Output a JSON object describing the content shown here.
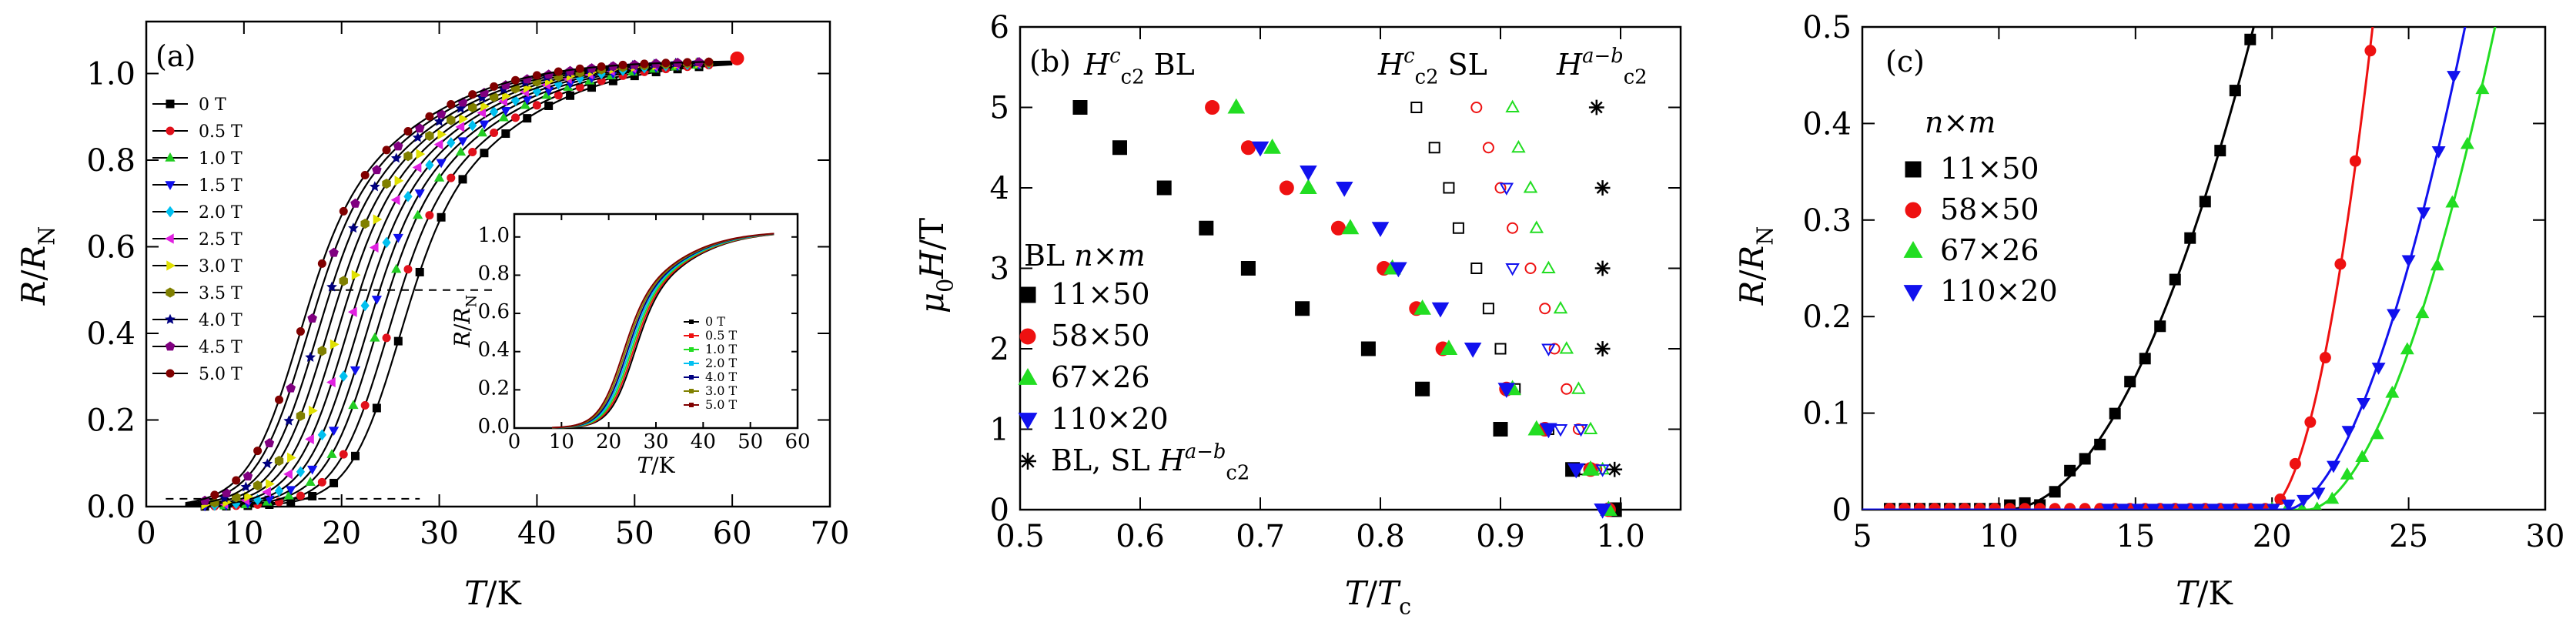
{
  "chart_data": [
    {
      "type": "line",
      "panel_label": "(a)",
      "xlabel": "T/K",
      "ylabel": "R/R_N",
      "xlim": [
        0,
        70
      ],
      "ylim": [
        0,
        1.12
      ],
      "x_ticks": [
        0,
        10,
        20,
        30,
        40,
        50,
        60,
        70
      ],
      "y_ticks": [
        0,
        0.2,
        0.4,
        0.6,
        0.8,
        1.0
      ],
      "series": [
        {
          "name": "0 T",
          "color": "#000000",
          "marker": "square",
          "tc": 25.5
        },
        {
          "name": "0.5 T",
          "color": "#e0101b",
          "marker": "circle",
          "tc": 24.2
        },
        {
          "name": "1.0 T",
          "color": "#22cc22",
          "marker": "triangle-up",
          "tc": 23.0
        },
        {
          "name": "1.5 T",
          "color": "#1010ee",
          "marker": "triangle-down",
          "tc": 22.0
        },
        {
          "name": "2.0 T",
          "color": "#00c0f0",
          "marker": "diamond",
          "tc": 21.0
        },
        {
          "name": "2.5 T",
          "color": "#e020e0",
          "marker": "triangle-left",
          "tc": 20.0
        },
        {
          "name": "3.0 T",
          "color": "#e0e000",
          "marker": "triangle-right",
          "tc": 19.0
        },
        {
          "name": "3.5 T",
          "color": "#808000",
          "marker": "hexagon",
          "tc": 18.0
        },
        {
          "name": "4.0 T",
          "color": "#000080",
          "marker": "star",
          "tc": 17.0
        },
        {
          "name": "4.5 T",
          "color": "#800080",
          "marker": "pentagon",
          "tc": 16.0
        },
        {
          "name": "5.0 T",
          "color": "#800000",
          "marker": "circle",
          "tc": 15.2
        }
      ],
      "inset": {
        "xlabel": "T/K",
        "ylabel": "R/R_N",
        "xlim": [
          0,
          60
        ],
        "ylim": [
          0,
          1.12
        ],
        "x_ticks": [
          0,
          10,
          20,
          30,
          40,
          50,
          60
        ],
        "y_ticks": [
          0,
          0.2,
          0.4,
          0.6,
          0.8,
          1.0
        ],
        "legend": [
          "0 T",
          "0.5 T",
          "1.0 T",
          "2.0 T",
          "4.0 T",
          "3.0 T",
          "5.0 T"
        ]
      }
    },
    {
      "type": "scatter",
      "panel_label": "(b)",
      "xlabel": "T/T_c",
      "ylabel": "μ0H/T",
      "xlim": [
        0.5,
        1.05
      ],
      "ylim": [
        0,
        6
      ],
      "x_ticks": [
        0.5,
        0.6,
        0.7,
        0.8,
        0.9,
        1.0
      ],
      "y_ticks": [
        0,
        1,
        2,
        3,
        4,
        5,
        6
      ],
      "annotations": {
        "hc2_bl": "H^c_c2 BL",
        "hc2_sl": "H^c_c2 SL",
        "hab": "H^{a-b}_c2"
      },
      "legend_title": "BL n×m",
      "series": [
        {
          "name": "11×50",
          "color": "#000000",
          "marker": "square",
          "bl": [
            [
              0.55,
              5
            ],
            [
              0.583,
              4.5
            ],
            [
              0.62,
              4
            ],
            [
              0.655,
              3.5
            ],
            [
              0.69,
              3
            ],
            [
              0.735,
              2.5
            ],
            [
              0.79,
              2
            ],
            [
              0.835,
              1.5
            ],
            [
              0.9,
              1
            ],
            [
              0.96,
              0.5
            ],
            [
              0.995,
              0
            ]
          ],
          "sl": [
            [
              0.83,
              5
            ],
            [
              0.845,
              4.5
            ],
            [
              0.857,
              4
            ],
            [
              0.865,
              3.5
            ],
            [
              0.88,
              3
            ],
            [
              0.89,
              2.5
            ],
            [
              0.9,
              2
            ],
            [
              0.912,
              1.5
            ],
            [
              0.94,
              1
            ],
            [
              0.97,
              0.5
            ]
          ]
        },
        {
          "name": "58×50",
          "color": "#ee1111",
          "marker": "circle",
          "bl": [
            [
              0.66,
              5
            ],
            [
              0.69,
              4.5
            ],
            [
              0.722,
              4
            ],
            [
              0.765,
              3.5
            ],
            [
              0.803,
              3
            ],
            [
              0.83,
              2.5
            ],
            [
              0.852,
              2
            ],
            [
              0.905,
              1.5
            ],
            [
              0.937,
              1
            ],
            [
              0.975,
              0.5
            ],
            [
              0.99,
              0
            ]
          ],
          "sl": [
            [
              0.88,
              5
            ],
            [
              0.89,
              4.5
            ],
            [
              0.9,
              4
            ],
            [
              0.91,
              3.5
            ],
            [
              0.925,
              3
            ],
            [
              0.937,
              2.5
            ],
            [
              0.945,
              2
            ],
            [
              0.955,
              1.5
            ],
            [
              0.965,
              1
            ],
            [
              0.98,
              0.5
            ]
          ]
        },
        {
          "name": "67×26",
          "color": "#22dd22",
          "marker": "triangle-up",
          "bl": [
            [
              0.68,
              5
            ],
            [
              0.71,
              4.5
            ],
            [
              0.74,
              4
            ],
            [
              0.775,
              3.5
            ],
            [
              0.81,
              3
            ],
            [
              0.835,
              2.5
            ],
            [
              0.857,
              2
            ],
            [
              0.91,
              1.5
            ],
            [
              0.93,
              1
            ],
            [
              0.975,
              0.5
            ],
            [
              0.99,
              0
            ]
          ],
          "sl": [
            [
              0.91,
              5
            ],
            [
              0.915,
              4.5
            ],
            [
              0.925,
              4
            ],
            [
              0.93,
              3.5
            ],
            [
              0.94,
              3
            ],
            [
              0.95,
              2.5
            ],
            [
              0.955,
              2
            ],
            [
              0.965,
              1.5
            ],
            [
              0.975,
              1
            ],
            [
              0.985,
              0.5
            ]
          ]
        },
        {
          "name": "110×20",
          "color": "#1111ee",
          "marker": "triangle-down",
          "bl": [
            [
              0.7,
              4.5
            ],
            [
              0.74,
              4.2
            ],
            [
              0.77,
              4
            ],
            [
              0.8,
              3.5
            ],
            [
              0.815,
              3
            ],
            [
              0.85,
              2.5
            ],
            [
              0.877,
              2
            ],
            [
              0.905,
              1.5
            ],
            [
              0.94,
              1
            ],
            [
              0.963,
              0.5
            ],
            [
              0.985,
              0
            ]
          ],
          "sl": [
            [
              0.905,
              4
            ],
            [
              0.91,
              3
            ],
            [
              0.94,
              2
            ],
            [
              0.95,
              1
            ],
            [
              0.967,
              1
            ],
            [
              0.985,
              0.5
            ]
          ]
        },
        {
          "name": "BL, SL H^{a-b}_c2",
          "color": "#000000",
          "marker": "asterisk",
          "bl": [
            [
              0.98,
              5
            ],
            [
              0.985,
              4
            ],
            [
              0.985,
              3
            ],
            [
              0.985,
              2
            ],
            [
              0.995,
              0.5
            ]
          ],
          "sl": []
        }
      ]
    },
    {
      "type": "scatter",
      "panel_label": "(c)",
      "xlabel": "T/K",
      "ylabel": "R/R_N",
      "xlim": [
        5,
        30
      ],
      "ylim": [
        0,
        0.5
      ],
      "x_ticks": [
        5,
        10,
        15,
        20,
        25,
        30
      ],
      "y_ticks": [
        0,
        0.1,
        0.2,
        0.3,
        0.4,
        0.5
      ],
      "legend_title": "n×m",
      "series": [
        {
          "name": "11×50",
          "color": "#000000",
          "marker": "square",
          "t0": 10.2,
          "k": 0.006,
          "p": 2.0,
          "x_start": 6
        },
        {
          "name": "58×50",
          "color": "#ee1111",
          "marker": "circle",
          "t0": 19.8,
          "k": 0.038,
          "p": 1.9,
          "x_start": 6
        },
        {
          "name": "67×26",
          "color": "#22dd22",
          "marker": "triangle-up",
          "t0": 21.3,
          "k": 0.0156,
          "p": 1.8,
          "x_start": 20
        },
        {
          "name": "110×20",
          "color": "#1111ee",
          "marker": "triangle-down",
          "t0": 20.5,
          "k": 0.0169,
          "p": 1.8,
          "x_start": 14
        }
      ]
    }
  ]
}
